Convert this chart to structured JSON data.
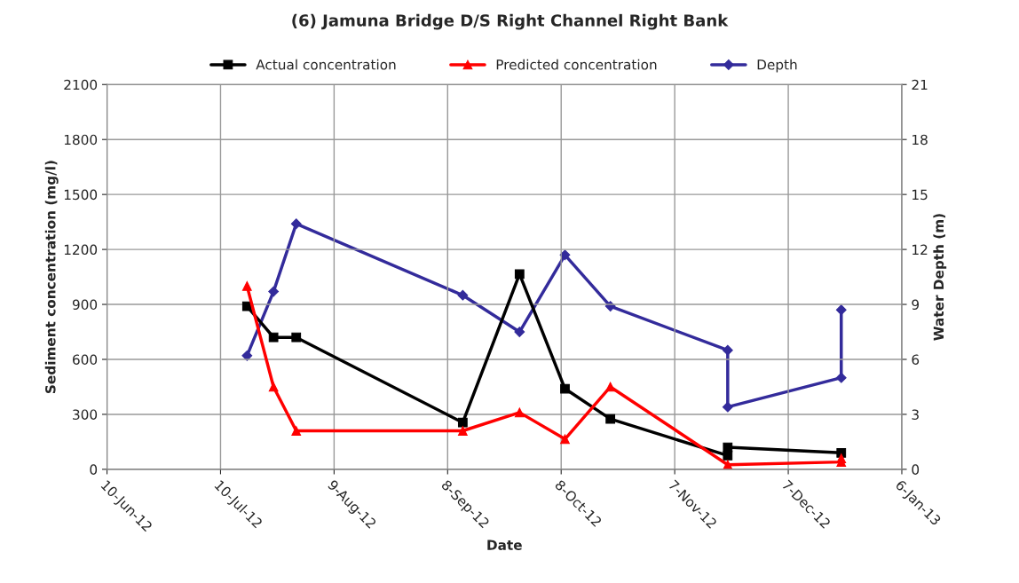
{
  "chart_data": {
    "type": "line",
    "title": "(6) Jamuna Bridge D/S Right Channel Right Bank",
    "xlabel": "Date",
    "ylabel": "Sediment concentration (mg/l)",
    "y2label": "Water Depth (m)",
    "xlim": [
      "2012-06-10",
      "2013-01-06"
    ],
    "xticks": [
      {
        "value": "2012-06-10",
        "label": "10-Jun-12"
      },
      {
        "value": "2012-07-10",
        "label": "10-Jul-12"
      },
      {
        "value": "2012-08-09",
        "label": "9-Aug-12"
      },
      {
        "value": "2012-09-08",
        "label": "8-Sep-12"
      },
      {
        "value": "2012-10-08",
        "label": "8-Oct-12"
      },
      {
        "value": "2012-11-07",
        "label": "7-Nov-12"
      },
      {
        "value": "2012-12-07",
        "label": "7-Dec-12"
      },
      {
        "value": "2013-01-06",
        "label": "6-Jan-13"
      }
    ],
    "ylim": [
      0,
      2100
    ],
    "yticks": [
      0,
      300,
      600,
      900,
      1200,
      1500,
      1800,
      2100
    ],
    "y2lim": [
      0,
      21
    ],
    "y2ticks": [
      0,
      3,
      6,
      9,
      12,
      15,
      18,
      21
    ],
    "grid": true,
    "legend": "top",
    "series": [
      {
        "name": "Actual concentration",
        "color": "#000000",
        "marker": "square",
        "x": [
          "2012-07-17",
          "2012-07-24",
          "2012-07-30",
          "2012-09-12",
          "2012-09-27",
          "2012-10-09",
          "2012-10-21",
          "2012-11-21",
          "2012-11-21",
          "2012-12-21"
        ],
        "values": [
          890,
          720,
          720,
          255,
          1065,
          440,
          275,
          75,
          120,
          90
        ]
      },
      {
        "name": "Predicted concentration",
        "color": "#ff0000",
        "marker": "triangle",
        "x": [
          "2012-07-17",
          "2012-07-24",
          "2012-07-30",
          "2012-09-12",
          "2012-09-27",
          "2012-10-09",
          "2012-10-21",
          "2012-11-21",
          "2012-12-21",
          "2012-12-21"
        ],
        "values": [
          1000,
          450,
          210,
          210,
          310,
          165,
          450,
          25,
          40,
          60
        ]
      },
      {
        "name": "Depth",
        "color": "#332b9b",
        "marker": "diamond",
        "axis": "y2",
        "x": [
          "2012-07-17",
          "2012-07-24",
          "2012-07-30",
          "2012-09-12",
          "2012-09-27",
          "2012-10-09",
          "2012-10-21",
          "2012-11-21",
          "2012-11-21",
          "2012-12-21",
          "2012-12-21"
        ],
        "values": [
          6.2,
          9.7,
          13.4,
          9.5,
          7.5,
          11.7,
          8.9,
          6.5,
          3.4,
          5.0,
          8.7
        ]
      }
    ]
  }
}
